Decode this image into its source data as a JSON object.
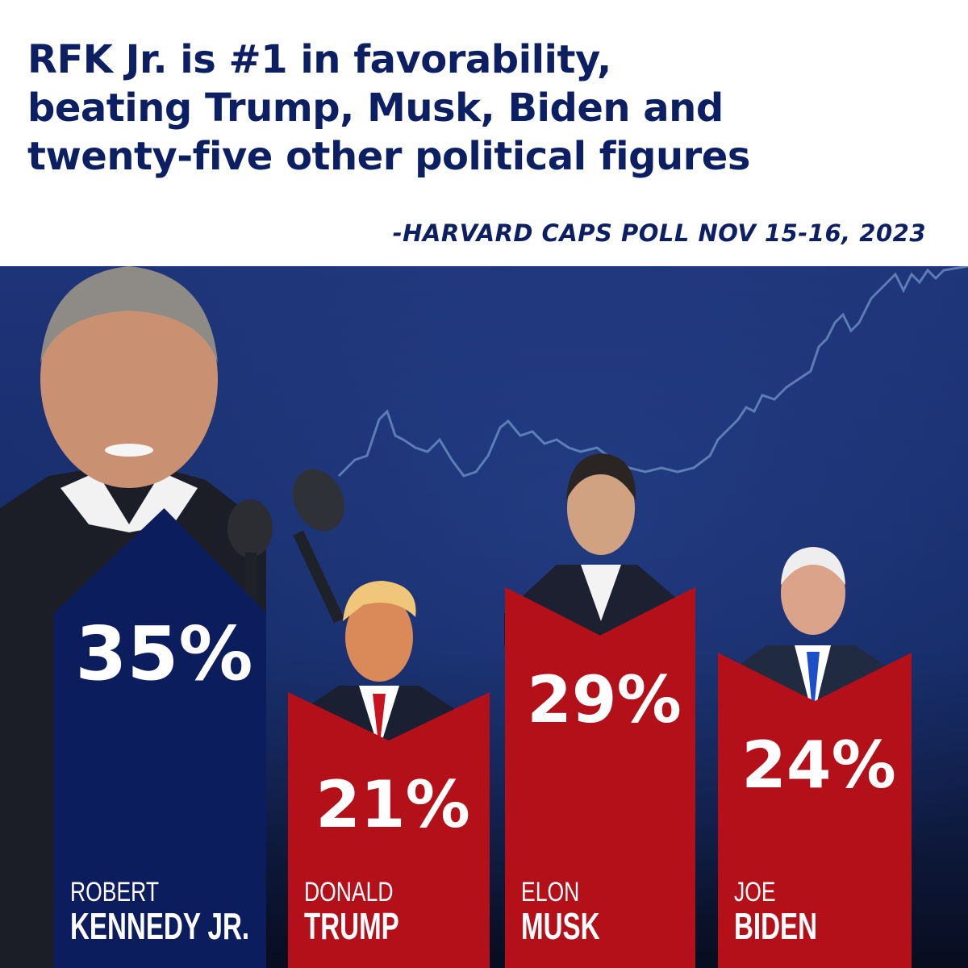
{
  "headline": {
    "lines": [
      "RFK Jr. is #1 in favorability,",
      "beating Trump, Musk, Biden and",
      "twenty-five other political figures"
    ]
  },
  "source": "-HARVARD CAPS POLL NOV 15-16, 2023",
  "colors": {
    "title": "#0d1f63",
    "background": "#1a2f73",
    "rfk_bar": "#0c1d5e",
    "other_bars": "#b3101a",
    "label_text": "#ffffff"
  },
  "chart_data": {
    "type": "bar",
    "unit": "%",
    "categories": [
      "ROBERT KENNEDY JR.",
      "DONALD TRUMP",
      "ELON MUSK",
      "JOE BIDEN"
    ],
    "values": [
      35,
      21,
      29,
      24
    ],
    "value_labels": [
      "35%",
      "21%",
      "29%",
      "24%"
    ],
    "names": [
      {
        "first": "ROBERT",
        "last": "KENNEDY JR."
      },
      {
        "first": "DONALD",
        "last": "TRUMP"
      },
      {
        "first": "ELON",
        "last": "MUSK"
      },
      {
        "first": "JOE",
        "last": "BIDEN"
      }
    ],
    "ylim": [
      0,
      35
    ]
  }
}
